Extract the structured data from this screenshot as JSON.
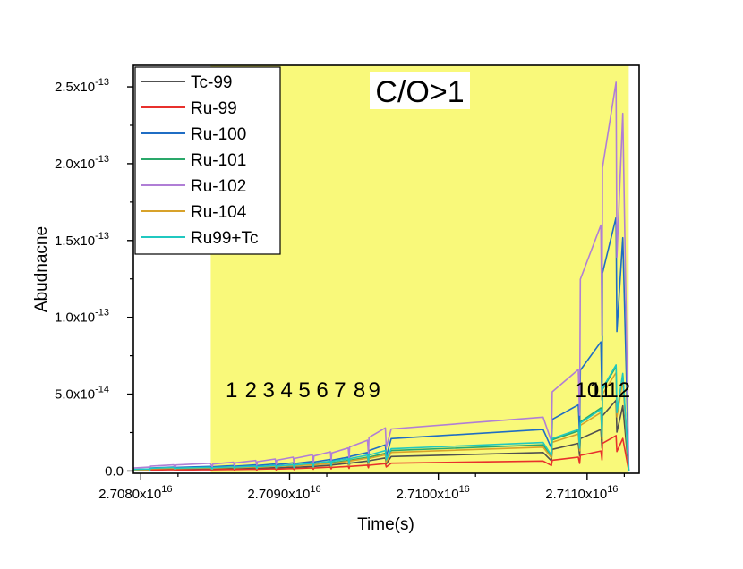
{
  "chart_data": {
    "type": "line",
    "title": "",
    "xlabel": "Time(s)",
    "ylabel": "Abudnacne",
    "xlim": [
      2.70795e+16,
      2.71135e+16
    ],
    "ylim": [
      -1.5e-15,
      2.64e-13
    ],
    "x_ticks": [
      {
        "value": 2.708e+16,
        "mant": "2.7080x10",
        "exp": "16"
      },
      {
        "value": 2.709e+16,
        "mant": "2.7090x10",
        "exp": "16"
      },
      {
        "value": 2.71e+16,
        "mant": "2.7100x10",
        "exp": "16"
      },
      {
        "value": 2.711e+16,
        "mant": "2.7110x10",
        "exp": "16"
      }
    ],
    "y_ticks": [
      {
        "value": 0,
        "mant": "0.0",
        "exp": ""
      },
      {
        "value": 5e-14,
        "mant": "5.0x10",
        "exp": "-14"
      },
      {
        "value": 1e-13,
        "mant": "1.0x10",
        "exp": "-13"
      },
      {
        "value": 1.5e-13,
        "mant": "1.5x10",
        "exp": "-13"
      },
      {
        "value": 2e-13,
        "mant": "2.0x10",
        "exp": "-13"
      },
      {
        "value": 2.5e-13,
        "mant": "2.5x10",
        "exp": "-13"
      }
    ],
    "shaded_region": {
      "x_start": 2.70847e+16,
      "x_end": 2.71128e+16,
      "color": "#f9f97a"
    },
    "region_label": "C/O>1",
    "pulse_labels": [
      {
        "text": "1",
        "x": 2.70861e+16
      },
      {
        "text": "2",
        "x": 2.70874e+16
      },
      {
        "text": "3",
        "x": 2.70886e+16
      },
      {
        "text": "4",
        "x": 2.70898e+16
      },
      {
        "text": "5",
        "x": 2.7091e+16
      },
      {
        "text": "6",
        "x": 2.70922e+16
      },
      {
        "text": "7",
        "x": 2.70934e+16
      },
      {
        "text": "8",
        "x": 2.70947e+16
      },
      {
        "text": "9",
        "x": 2.70957e+16
      },
      {
        "text": "10",
        "x": 2.711e+16
      },
      {
        "text": "11",
        "x": 2.71109e+16
      },
      {
        "text": "12",
        "x": 2.71121e+16
      }
    ],
    "pulse_times": [
      2.70806e+16,
      2.70823e+16,
      2.70848e+16,
      2.70863e+16,
      2.70878e+16,
      2.70891e+16,
      2.70903e+16,
      2.70916e+16,
      2.70928e+16,
      2.7094e+16,
      2.70953e+16,
      2.70965e+16,
      2.71076e+16,
      2.71095e+16,
      2.7111e+16,
      2.7112e+16
    ],
    "legend": {
      "placement": "top-left"
    },
    "series": [
      {
        "name": "Tc-99",
        "color": "#505050",
        "peaks": [
          8e-16,
          1.5e-15,
          1.5e-15,
          1.8e-15,
          2e-15,
          2.2e-15,
          2.5e-15,
          3e-15,
          3.8e-15,
          5e-15,
          6.5e-15,
          8.5e-15,
          1.2e-14,
          1.8e-14,
          2.7e-14,
          4.6e-14
        ]
      },
      {
        "name": "Ru-99",
        "color": "#e8302c",
        "peaks": [
          5e-16,
          8e-16,
          8e-16,
          1e-15,
          1.2e-15,
          1.4e-15,
          1.6e-15,
          2e-15,
          2.5e-15,
          3e-15,
          3.8e-15,
          4.8e-15,
          6.5e-15,
          9e-15,
          1.3e-14,
          2.3e-14
        ]
      },
      {
        "name": "Ru-100",
        "color": "#1f6dc4",
        "peaks": [
          1.2e-15,
          2.5e-15,
          3e-15,
          3.5e-15,
          4e-15,
          4.6e-15,
          5.3e-15,
          6.2e-15,
          7.5e-15,
          9e-15,
          1.2e-14,
          1.7e-14,
          2.7e-14,
          4.3e-14,
          8.4e-14,
          1.65e-13
        ]
      },
      {
        "name": "Ru-101",
        "color": "#2aa86a",
        "peaks": [
          1e-15,
          2e-15,
          2.2e-15,
          2.6e-15,
          3e-15,
          3.4e-15,
          3.9e-15,
          4.5e-15,
          5.5e-15,
          6.8e-15,
          9e-15,
          1.15e-14,
          1.7e-14,
          2.6e-14,
          4.1e-14,
          6.8e-14
        ]
      },
      {
        "name": "Ru-102",
        "color": "#b07ed6",
        "peaks": [
          2.5e-15,
          4e-15,
          5e-15,
          5.8e-15,
          6.8e-15,
          7.8e-15,
          9e-15,
          1.05e-14,
          1.25e-14,
          1.5e-14,
          2e-14,
          2.8e-14,
          3.5e-14,
          6.6e-14,
          1.6e-13,
          2.53e-13
        ]
      },
      {
        "name": "Ru-104",
        "color": "#d8a22a",
        "peaks": [
          9e-16,
          1.8e-15,
          2e-15,
          2.4e-15,
          2.7e-15,
          3.1e-15,
          3.6e-15,
          4.2e-15,
          5.1e-15,
          6.3e-15,
          8.3e-15,
          1.05e-14,
          1.55e-14,
          2.4e-14,
          3.8e-14,
          6.4e-14
        ]
      },
      {
        "name": "Ru99+Tc",
        "color": "#20c8c0",
        "peaks": [
          1.3e-15,
          2.3e-15,
          2.4e-15,
          2.8e-15,
          3.2e-15,
          3.6e-15,
          4.1e-15,
          5e-15,
          6.3e-15,
          8e-15,
          1.03e-14,
          1.33e-14,
          1.85e-14,
          2.7e-14,
          4e-14,
          6.9e-14
        ]
      }
    ]
  }
}
